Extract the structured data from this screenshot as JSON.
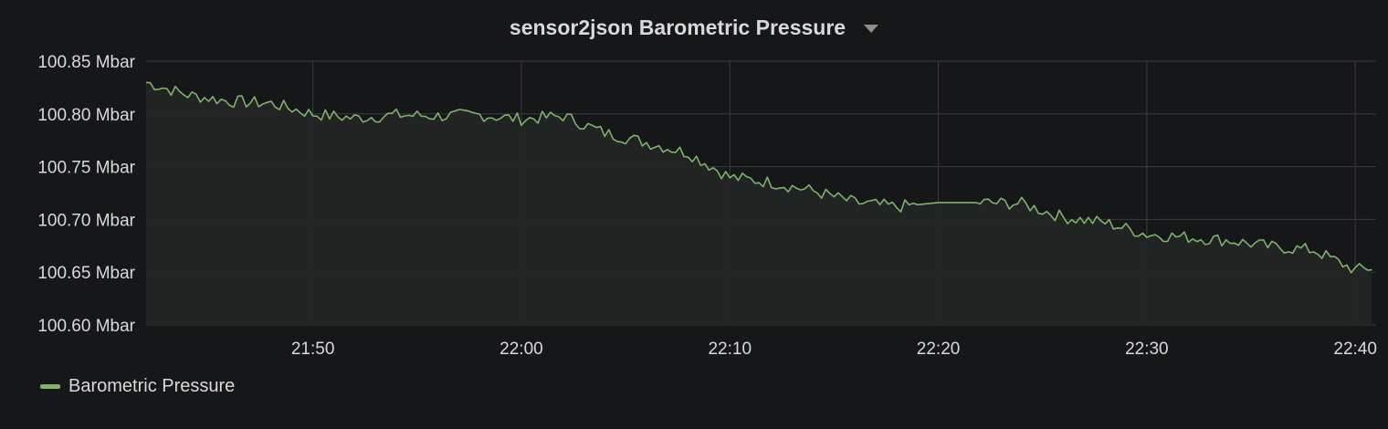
{
  "panel": {
    "title": "sensor2json Barometric Pressure",
    "menu_icon": "caret-down-icon"
  },
  "colors": {
    "background": "#161719",
    "grid": "#3a3b3d",
    "series": "#7eb26d",
    "fill": "#222624"
  },
  "chart_data": {
    "type": "area",
    "title": "sensor2json Barometric Pressure",
    "xlabel": "",
    "ylabel": "",
    "y_unit": "Mbar",
    "ylim": [
      100.6,
      100.85
    ],
    "y_ticks": [
      "100.85 Mbar",
      "100.80 Mbar",
      "100.75 Mbar",
      "100.70 Mbar",
      "100.65 Mbar",
      "100.60 Mbar"
    ],
    "y_tick_values": [
      100.85,
      100.8,
      100.75,
      100.7,
      100.65,
      100.6
    ],
    "xlim": [
      "21:42",
      "22:41"
    ],
    "x_ticks": [
      "21:50",
      "22:00",
      "22:10",
      "22:20",
      "22:30",
      "22:40"
    ],
    "grid": true,
    "legend": "bottom-left",
    "series": [
      {
        "name": "Barometric Pressure",
        "x": [
          "21:42",
          "21:44",
          "21:46",
          "21:48",
          "21:50",
          "21:52",
          "21:54",
          "21:56",
          "21:58",
          "22:00",
          "22:02",
          "22:04",
          "22:06",
          "22:08",
          "22:10",
          "22:12",
          "22:14",
          "22:16",
          "22:18",
          "22:20",
          "22:22",
          "22:24",
          "22:26",
          "22:28",
          "22:30",
          "22:32",
          "22:34",
          "22:36",
          "22:38",
          "22:40",
          "22:41"
        ],
        "values": [
          100.83,
          100.818,
          100.812,
          100.81,
          100.8,
          100.796,
          100.799,
          100.798,
          100.799,
          100.795,
          100.798,
          100.782,
          100.773,
          100.763,
          100.74,
          100.735,
          100.727,
          100.716,
          100.712,
          100.716,
          100.716,
          100.715,
          100.702,
          100.697,
          100.686,
          100.683,
          100.68,
          100.674,
          100.671,
          100.652,
          100.655
        ]
      }
    ]
  },
  "legend": {
    "items": [
      {
        "label": "Barometric Pressure"
      }
    ]
  }
}
